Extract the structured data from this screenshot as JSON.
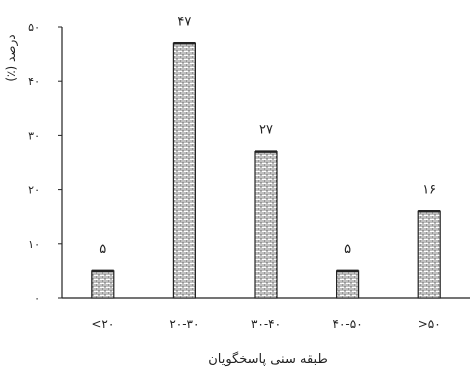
{
  "chart_data": {
    "type": "bar",
    "categories": [
      "<۲۰",
      "۲۰-۳۰",
      "۳۰-۴۰",
      "۴۰-۵۰",
      ">۵۰"
    ],
    "values": [
      5,
      47,
      27,
      5,
      16
    ],
    "value_labels": [
      "۵",
      "۴۷",
      "۲۷",
      "۵",
      "۱۶"
    ],
    "ylim": [
      0,
      50
    ],
    "yticks": [
      0,
      10,
      20,
      30,
      40,
      50
    ],
    "ytick_labels": [
      "۰",
      "۱۰",
      "۲۰",
      "۳۰",
      "۴۰",
      "۵۰"
    ],
    "ylabel": "(٪) درصد",
    "xlabel": "طبقه سنی پاسخگویان",
    "grid": false,
    "colors": {
      "bar_fill": "#ffffff",
      "bar_pattern": "#555555",
      "bar_stroke": "#222222",
      "axis": "#222222",
      "text": "#222222"
    }
  }
}
